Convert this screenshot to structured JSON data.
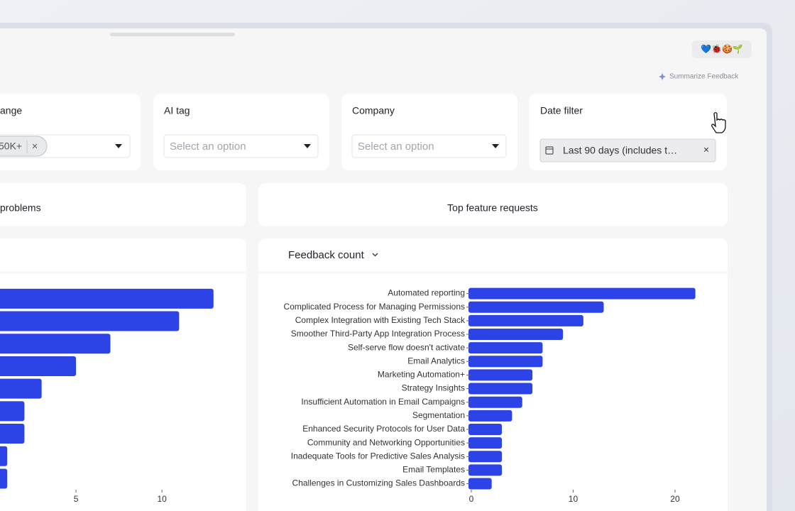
{
  "badge": "💙🐞🍪🌱",
  "summarize": "Summarize Feedback",
  "filters": [
    {
      "label": "ange",
      "chip": "50K+",
      "chip_remove": "×"
    },
    {
      "label": "AI tag",
      "placeholder": "Select an option"
    },
    {
      "label": "Company",
      "placeholder": "Select an option"
    },
    {
      "label": "Date filter",
      "value": "Last 90 days (includes t…",
      "remove": "×"
    }
  ],
  "panels": [
    "problems",
    "Top feature requests"
  ],
  "chart_header": "Feedback count",
  "chart_data": [
    {
      "type": "bar",
      "orientation": "horizontal",
      "categories": [
        null,
        null,
        null,
        null,
        null,
        null,
        null,
        null,
        null
      ],
      "values": [
        13,
        11,
        7,
        5,
        3,
        2,
        2,
        1,
        1
      ],
      "color": "#2c43e8",
      "xlim": [
        0,
        14
      ],
      "xticks": [
        5,
        10
      ]
    },
    {
      "type": "bar",
      "orientation": "horizontal",
      "categories": [
        "Automated reporting",
        "Complicated Process for Managing Permissions",
        "Complex Integration with Existing Tech Stack",
        "Smoother Third-Party App Integration Process",
        "Self-serve flow doesn't activate",
        "Email Analytics",
        "Marketing Automation+",
        "Strategy Insights",
        "Insufficient Automation in Email Campaigns",
        "Segmentation",
        "Enhanced Security Protocols for User Data",
        "Community and Networking Opportunities",
        "Inadequate Tools for Predictive Sales Analysis",
        "Email Templates",
        "Challenges in Customizing Sales Dashboards"
      ],
      "values": [
        22,
        13,
        11,
        9,
        7,
        7,
        6,
        6,
        5,
        4,
        3,
        3,
        3,
        3,
        2
      ],
      "color": "#2c43e8",
      "xlim": [
        0,
        23
      ],
      "xticks": [
        0,
        10,
        20
      ]
    }
  ]
}
